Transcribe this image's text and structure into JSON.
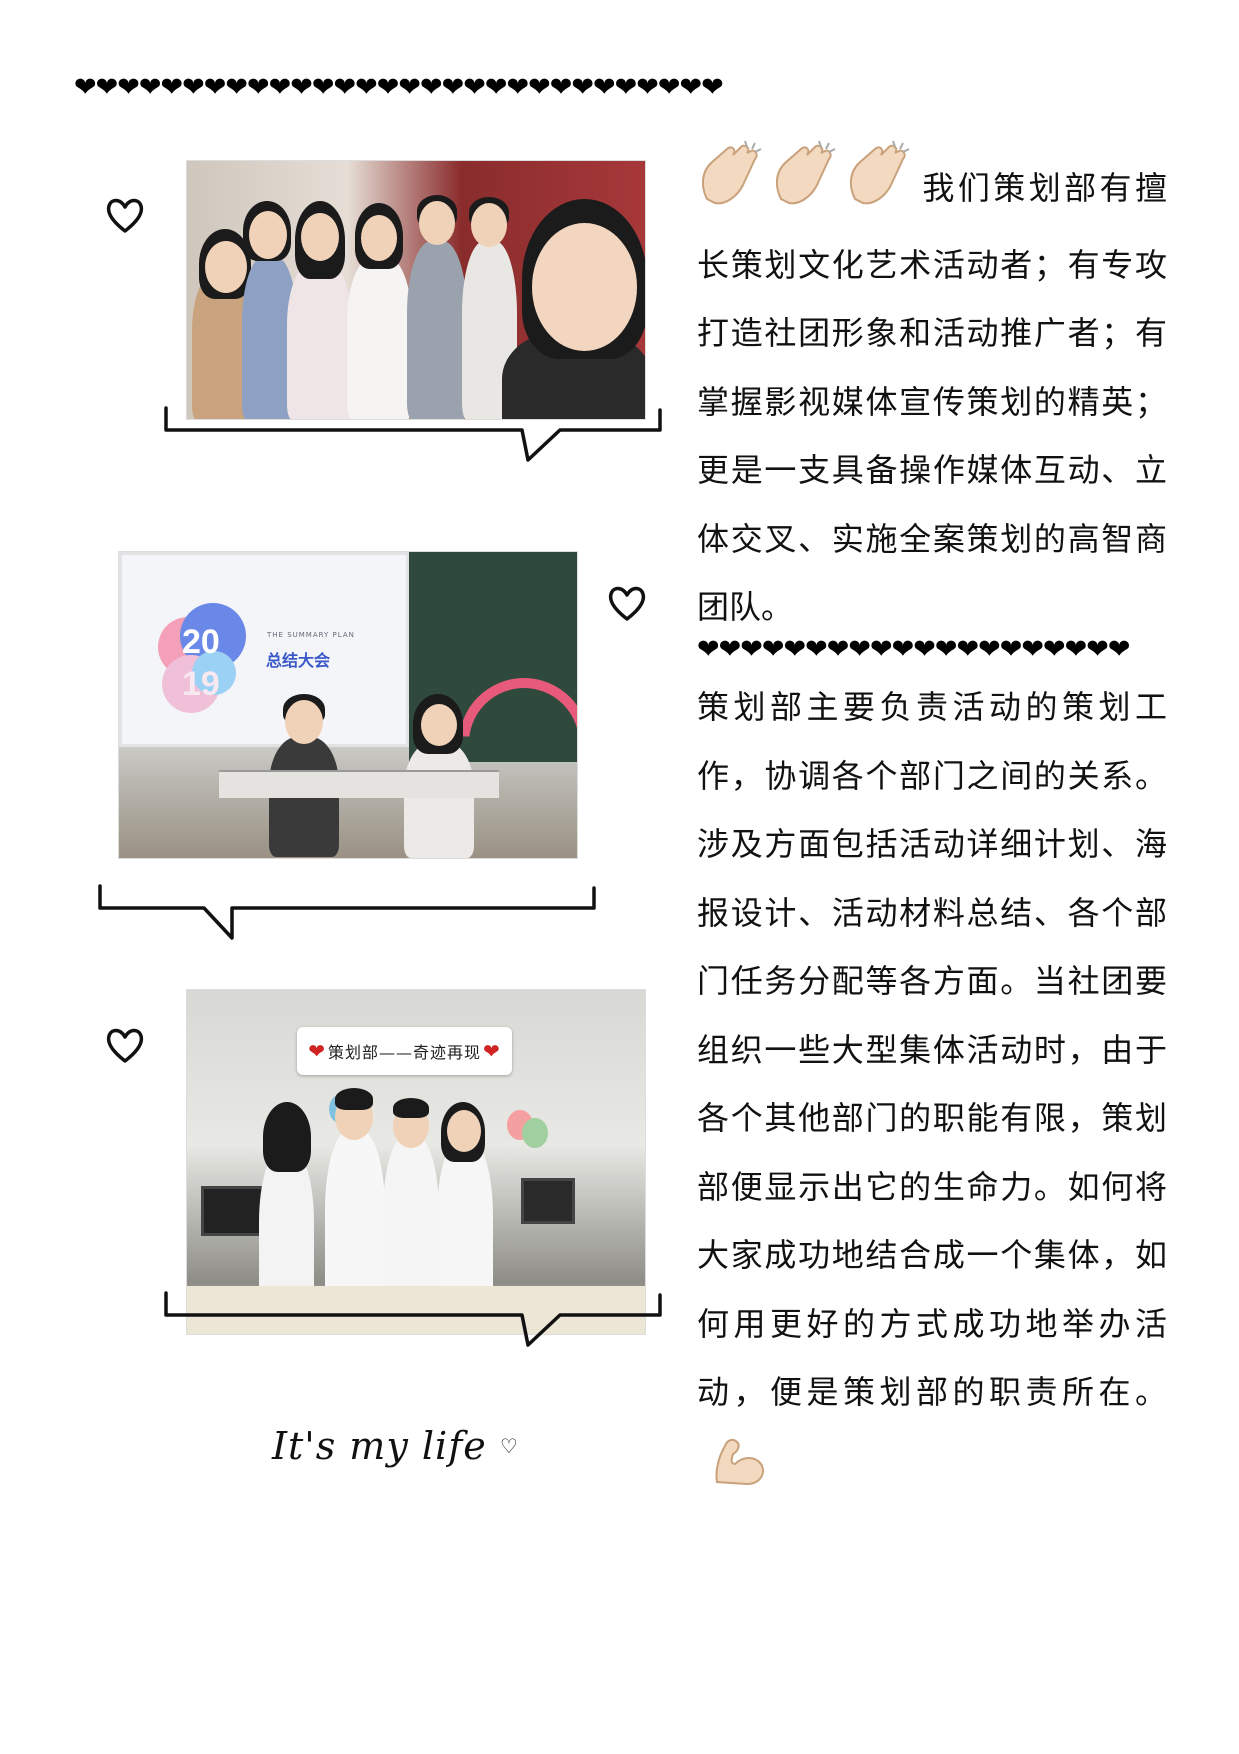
{
  "decorations": {
    "hearts_top": "❤❤❤❤❤❤❤❤❤❤❤❤❤❤❤❤❤❤❤❤❤❤❤❤❤❤❤❤❤❤",
    "hearts_mid": "❤❤❤❤❤❤❤❤❤❤❤❤❤❤❤❤❤❤❤❤",
    "clap_icon": "clapping-hands-icon",
    "muscle_icon": "flexed-biceps-icon",
    "outline_heart_icon": "heart-outline-icon"
  },
  "photos": [
    {
      "subject": "group-selfie"
    },
    {
      "subject": "summary-meeting-stage",
      "screen_kicker": "THE SUMMARY PLAN",
      "screen_title": "总结大会",
      "year_top": "20",
      "year_bottom": "19"
    },
    {
      "subject": "department-performance",
      "caption": "策划部——奇迹再现"
    }
  ],
  "paragraphs": {
    "intro": "我们策划部有擅长策划文化艺术活动者；有专攻打造社团形象和活动推广者；有掌握影视媒体宣传策划的精英；更是一支具备操作媒体互动、立体交叉、实施全案策划的高智商团队。",
    "duties": "策划部主要负责活动的策划工作，协调各个部门之间的关系。涉及方面包括活动详细计划、海报设计、活动材料总结、各个部门任务分配等各方面。当社团要组织一些大型集体活动时，由于各个其他部门的职能有限，策划部便显示出它的生命力。如何将大家成功地结合成一个集体，如何用更好的方式成功地举办活动，便是策划部的职责所在。"
  },
  "signature": "It's my life",
  "colors": {
    "text": "#111111",
    "hearts": "#000000",
    "accent_red": "#d02424",
    "screen_blue": "#3a58c9"
  }
}
